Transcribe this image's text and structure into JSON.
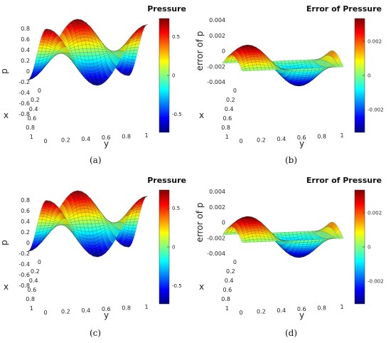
{
  "figures": [
    {
      "caption": "(a)",
      "title": "Pressure",
      "zlabel": "p",
      "xlabel": "x",
      "ylabel": "y",
      "z_ticks": [
        "0.8",
        "0.6",
        "0.4",
        "0.2",
        "0",
        "-0.2",
        "-0.4",
        "-0.6",
        "-0.8"
      ],
      "x_ticks": [
        "0",
        "0.2",
        "0.4",
        "0.6",
        "0.8",
        "1"
      ],
      "y_ticks": [
        "0",
        "0.2",
        "0.4",
        "0.6",
        "0.8",
        "1"
      ],
      "colorbar_ticks": [
        "0.5",
        "0",
        "-0.5"
      ]
    },
    {
      "caption": "(b)",
      "title": "Error of Pressure",
      "zlabel": "error of p",
      "xlabel": "x",
      "ylabel": "y",
      "z_ticks": [
        "0.004",
        "0.002",
        "0",
        "-0.002",
        "-0.004"
      ],
      "x_ticks": [
        "0",
        "0.2",
        "0.4",
        "0.6",
        "0.8",
        "1"
      ],
      "y_ticks": [
        "0",
        "0.2",
        "0.4",
        "0.6",
        "0.8",
        "1"
      ],
      "colorbar_ticks": [
        "0.002",
        "0",
        "-0.002"
      ]
    },
    {
      "caption": "(c)",
      "title": "Pressure",
      "zlabel": "p",
      "xlabel": "x",
      "ylabel": "y",
      "z_ticks": [
        "0.8",
        "0.6",
        "0.4",
        "0.2",
        "0",
        "-0.2",
        "-0.4",
        "-0.6",
        "-0.8"
      ],
      "x_ticks": [
        "0",
        "0.2",
        "0.4",
        "0.6",
        "0.8",
        "1"
      ],
      "y_ticks": [
        "0",
        "0.2",
        "0.4",
        "0.6",
        "0.8",
        "1"
      ],
      "colorbar_ticks": [
        "0.5",
        "0",
        "-0.5"
      ]
    },
    {
      "caption": "(d)",
      "title": "Error of Pressure",
      "zlabel": "error of p",
      "xlabel": "x",
      "ylabel": "y",
      "z_ticks": [
        "0.004",
        "0.002",
        "0",
        "-0.002",
        "-0.004"
      ],
      "x_ticks": [
        "0",
        "0.2",
        "0.4",
        "0.6",
        "0.8",
        "1"
      ],
      "y_ticks": [
        "0",
        "0.2",
        "0.4",
        "0.6",
        "0.8",
        "1"
      ],
      "colorbar_ticks": [
        "0.002",
        "0",
        "-0.002"
      ]
    }
  ],
  "colormap": [
    "#00007f",
    "#0000ff",
    "#0080ff",
    "#00ffff",
    "#80ff80",
    "#ffff00",
    "#ff8000",
    "#ff0000",
    "#7f0000"
  ]
}
